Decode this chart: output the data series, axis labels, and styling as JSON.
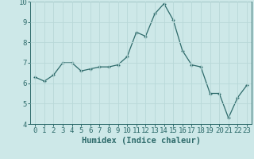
{
  "x": [
    0,
    1,
    2,
    3,
    4,
    5,
    6,
    7,
    8,
    9,
    10,
    11,
    12,
    13,
    14,
    15,
    16,
    17,
    18,
    19,
    20,
    21,
    22,
    23
  ],
  "y": [
    6.3,
    6.1,
    6.4,
    7.0,
    7.0,
    6.6,
    6.7,
    6.8,
    6.8,
    6.9,
    7.3,
    8.5,
    8.3,
    9.4,
    9.9,
    9.1,
    7.6,
    6.9,
    6.8,
    5.5,
    5.5,
    4.3,
    5.3,
    5.9
  ],
  "line_color": "#2e6b6b",
  "marker": "+",
  "bg_color": "#cde8e8",
  "grid_color": "#b8d8d8",
  "xlabel": "Humidex (Indice chaleur)",
  "ylim": [
    4,
    10
  ],
  "xlim": [
    -0.5,
    23.5
  ],
  "xticks": [
    0,
    1,
    2,
    3,
    4,
    5,
    6,
    7,
    8,
    9,
    10,
    11,
    12,
    13,
    14,
    15,
    16,
    17,
    18,
    19,
    20,
    21,
    22,
    23
  ],
  "yticks": [
    4,
    5,
    6,
    7,
    8,
    9,
    10
  ],
  "xlabel_fontsize": 7.5,
  "tick_fontsize": 6.5,
  "linewidth": 0.9,
  "markersize": 3.5
}
